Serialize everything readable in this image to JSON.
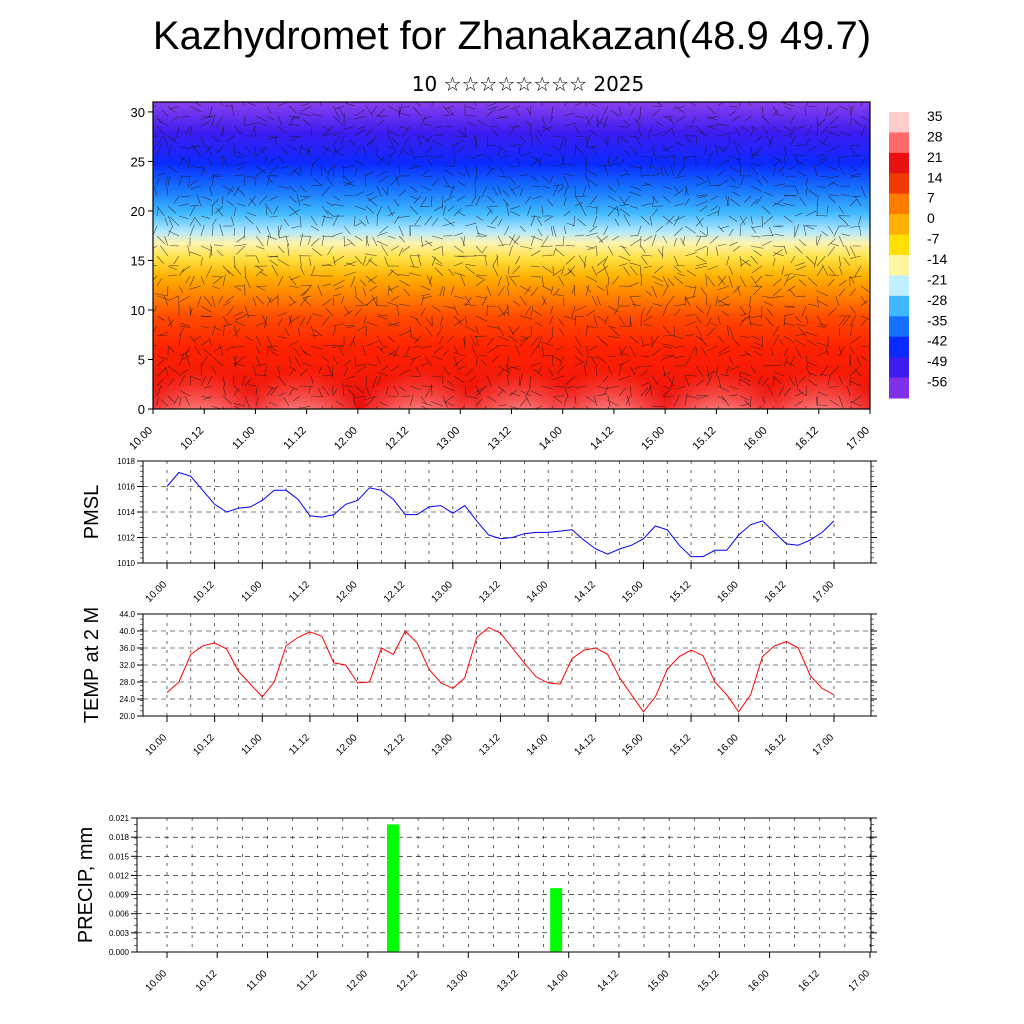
{
  "title": "Kazhydromet for Zhanakazan(48.9 49.7)",
  "subtitle": "10 ☆☆☆☆☆☆☆☆ 2025",
  "colors": {
    "pmsl_line": "#0000ff",
    "temp_line": "#ff0000",
    "precip_bar": "#00ff00"
  },
  "time_ticks": [
    "10.00",
    "10.12",
    "11.00",
    "11.12",
    "12.00",
    "12.12",
    "13.00",
    "13.12",
    "14.00",
    "14.12",
    "15.00",
    "15.12",
    "16.00",
    "16.12",
    "17.00"
  ],
  "chart_data": [
    {
      "type": "heatmap",
      "name": "cross-section",
      "yticks": [
        "0",
        "5",
        "10",
        "15",
        "20",
        "25",
        "30"
      ],
      "ylim": [
        0,
        31
      ],
      "colorbar_labels": [
        "35",
        "28",
        "21",
        "14",
        "7",
        "0",
        "-7",
        "-14",
        "-21",
        "-28",
        "-35",
        "-42",
        "-49",
        "-56"
      ],
      "colorbar_colors": [
        "#ffcccc",
        "#ff6b6b",
        "#e81010",
        "#f03a00",
        "#ff7b00",
        "#ffb000",
        "#ffe000",
        "#fff4a0",
        "#c0f0ff",
        "#3fb8ff",
        "#1670ff",
        "#0a2aff",
        "#3c1cf0",
        "#8030e8"
      ],
      "grid": false
    },
    {
      "type": "line",
      "ylabel": "PMSL",
      "yticks": [
        "1010",
        "1012",
        "1014",
        "1016",
        "1018"
      ],
      "ylim": [
        1010,
        1018
      ],
      "grid": true,
      "series": [
        {
          "values": [
            1016.0,
            1017.1,
            1016.8,
            1015.7,
            1014.6,
            1014.0,
            1014.3,
            1014.4,
            1014.9,
            1015.7,
            1015.7,
            1015.0,
            1013.7,
            1013.6,
            1013.8,
            1014.6,
            1014.9,
            1015.9,
            1015.7,
            1015.0,
            1013.8,
            1013.8,
            1014.4,
            1014.5,
            1013.9,
            1014.5,
            1013.3,
            1012.2,
            1011.9,
            1012.0,
            1012.3,
            1012.4,
            1012.4,
            1012.5,
            1012.6,
            1011.8,
            1011.1,
            1010.7,
            1011.1,
            1011.4,
            1011.9,
            1012.9,
            1012.6,
            1011.4,
            1010.5,
            1010.5,
            1011.0,
            1011.0,
            1012.2,
            1013.0,
            1013.3,
            1012.4,
            1011.5,
            1011.4,
            1011.8,
            1012.4,
            1013.3
          ]
        }
      ]
    },
    {
      "type": "line",
      "ylabel": "TEMP at 2 M",
      "yticks": [
        "20.0",
        "24.0",
        "28.0",
        "32.0",
        "36.0",
        "40.0",
        "44.0"
      ],
      "ylim": [
        20,
        44
      ],
      "grid": true,
      "series": [
        {
          "values": [
            25.5,
            28.0,
            34.5,
            36.5,
            37.2,
            35.8,
            30.5,
            27.5,
            24.5,
            28.0,
            36.5,
            38.5,
            39.8,
            38.8,
            32.5,
            32.0,
            27.8,
            28.0,
            36.0,
            34.5,
            40.0,
            37.2,
            31.0,
            27.8,
            26.5,
            29.0,
            38.5,
            40.8,
            39.5,
            36.0,
            32.5,
            29.2,
            27.8,
            27.5,
            33.5,
            35.5,
            36.0,
            34.5,
            29.0,
            25.0,
            21.0,
            24.5,
            31.0,
            34.0,
            35.5,
            34.2,
            28.0,
            25.0,
            21.0,
            25.0,
            34.0,
            36.5,
            37.5,
            36.0,
            29.5,
            26.5,
            25.0
          ]
        }
      ]
    },
    {
      "type": "bar",
      "ylabel": "PRECIP, mm",
      "yticks": [
        "0.000",
        "0.003",
        "0.006",
        "0.009",
        "0.012",
        "0.015",
        "0.018",
        "0.021"
      ],
      "ylim": [
        0,
        0.021
      ],
      "grid": true,
      "x": [
        "12.06",
        "13.21"
      ],
      "values": [
        0.02,
        0.01
      ]
    }
  ]
}
